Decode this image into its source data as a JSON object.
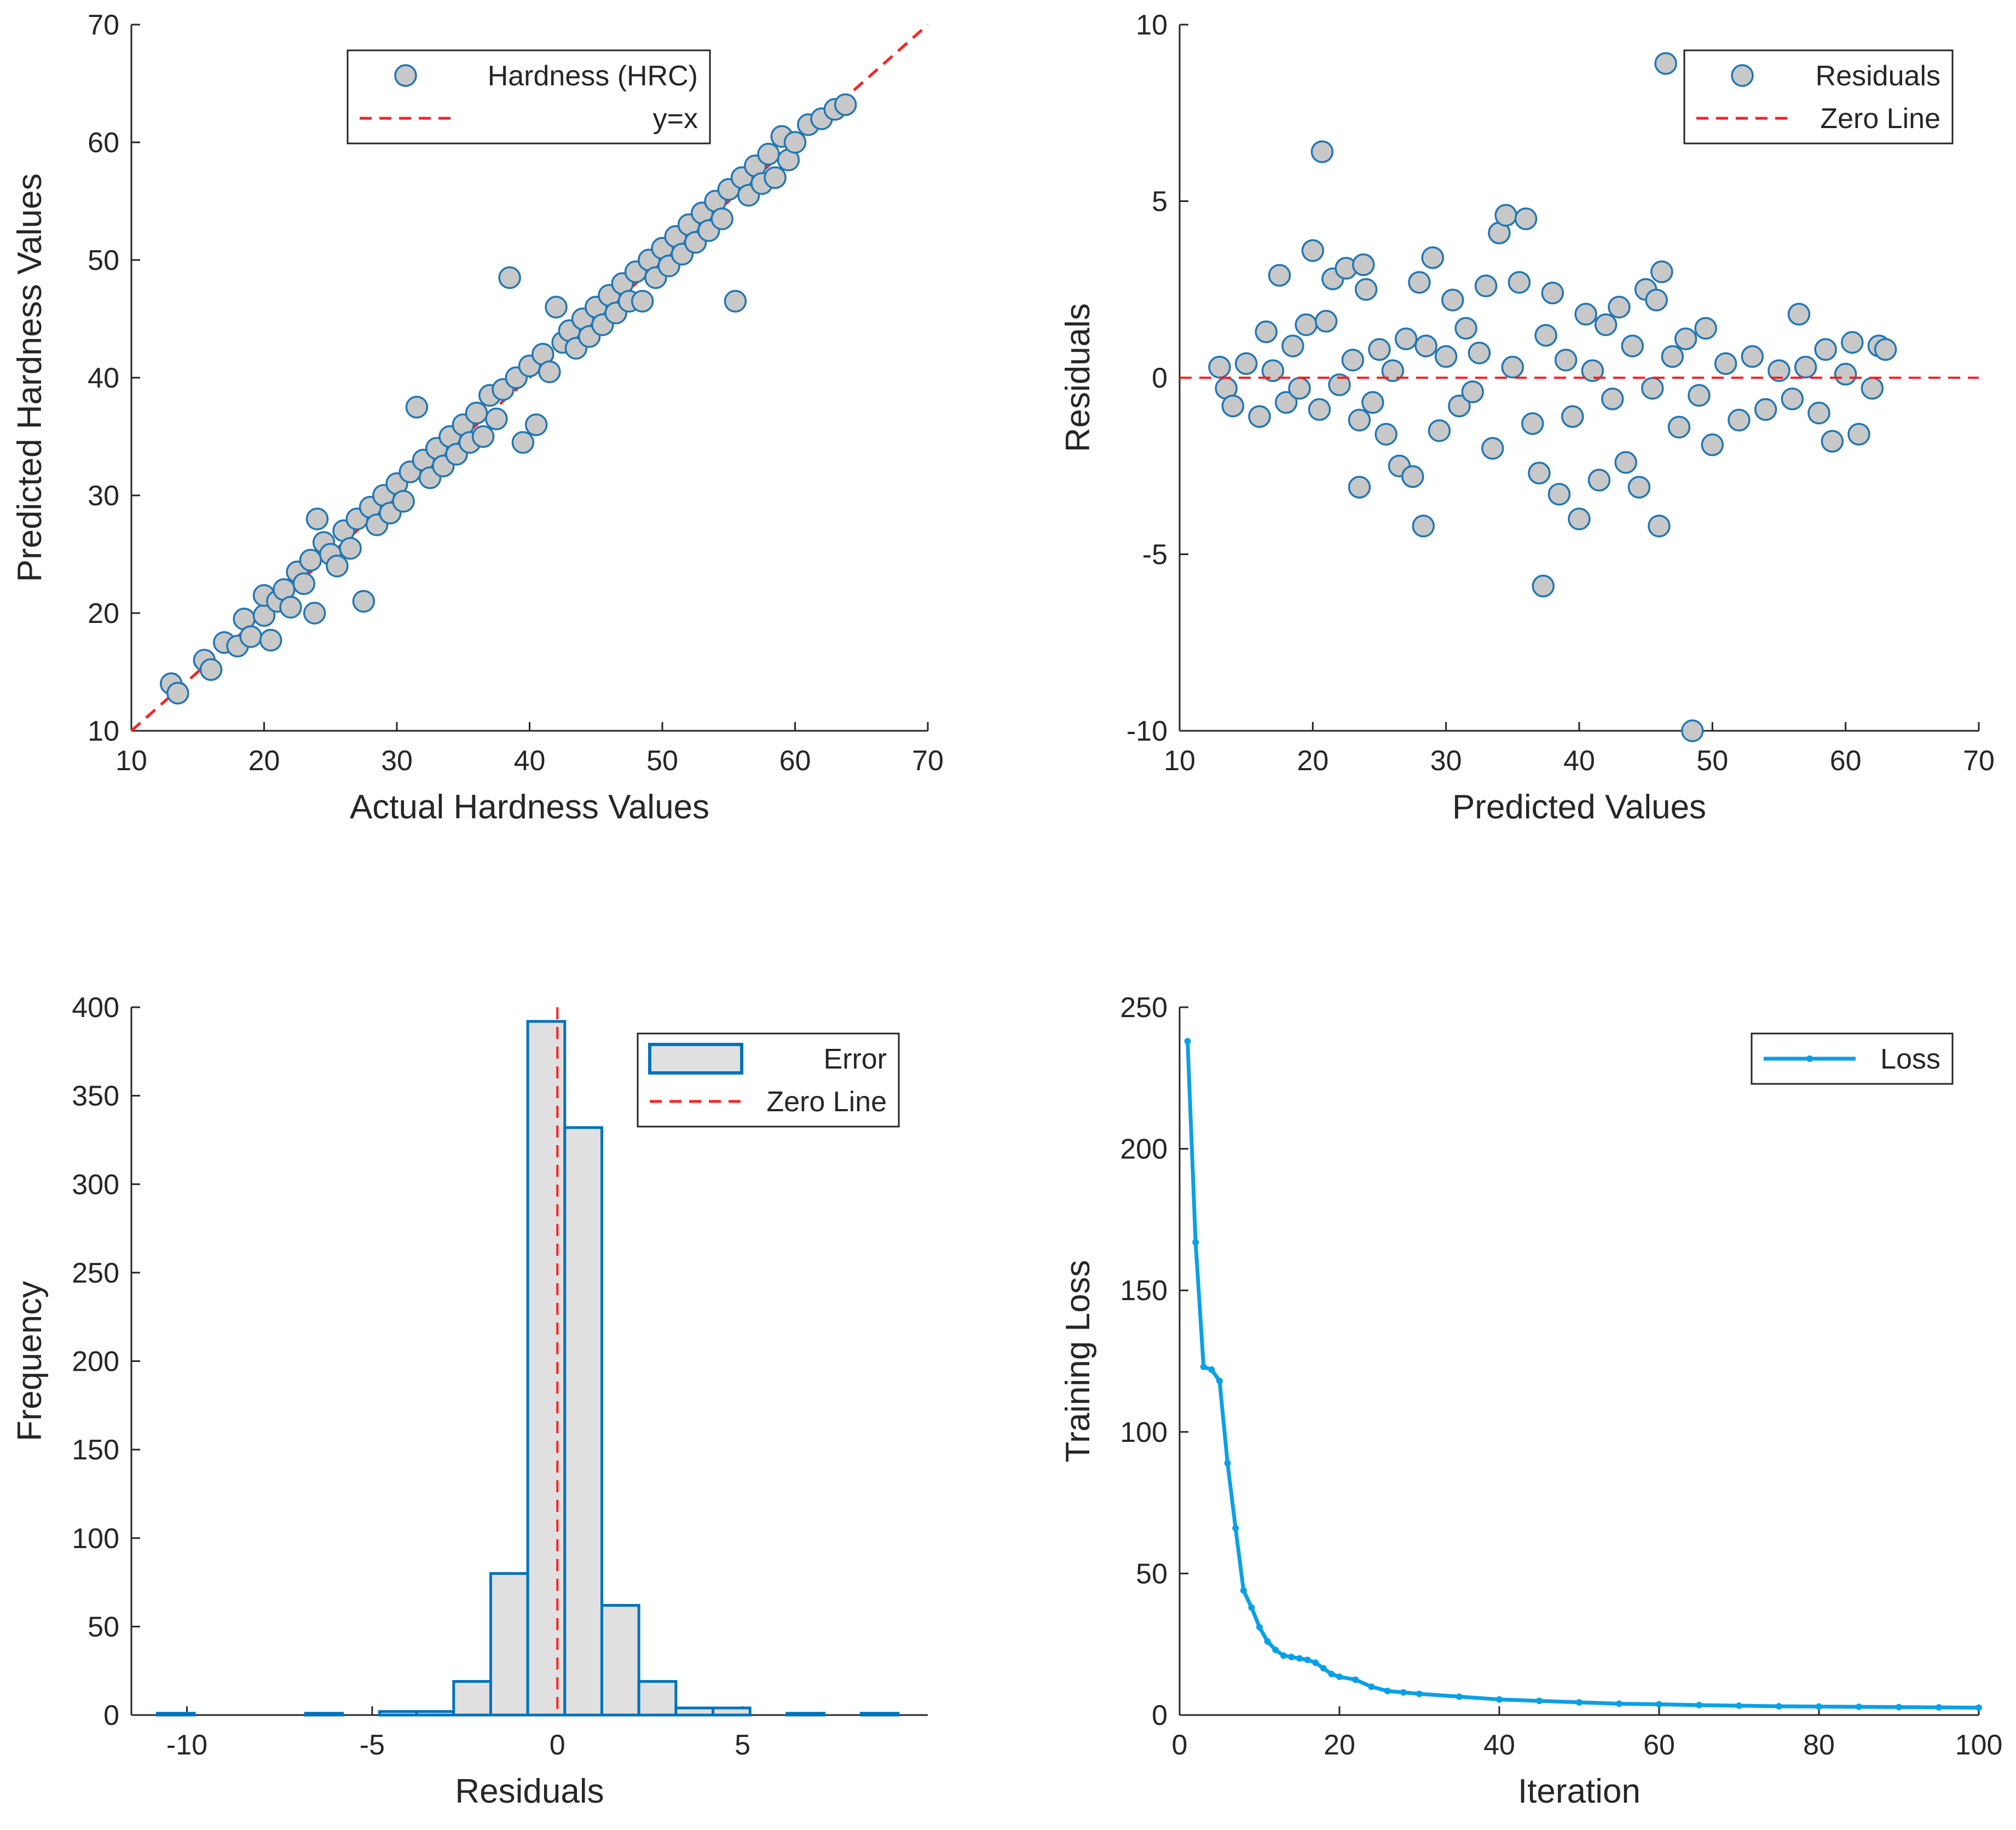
{
  "chart_data": [
    {
      "id": "scatter",
      "type": "scatter",
      "xlabel": "Actual Hardness Values",
      "ylabel": "Predicted Hardness Values",
      "xlim": [
        10,
        70
      ],
      "ylim": [
        10,
        70
      ],
      "xticks": [
        10,
        20,
        30,
        40,
        50,
        60,
        70
      ],
      "yticks": [
        10,
        20,
        30,
        40,
        50,
        60,
        70
      ],
      "legend": {
        "position": "top-center",
        "entries": [
          "Hardness (HRC)",
          "y=x"
        ]
      },
      "reference_line": {
        "name": "y=x",
        "from": [
          10,
          10
        ],
        "to": [
          70,
          70
        ],
        "style": "dashed",
        "color": "#ff2020"
      },
      "marker_fill": "#c8c8c8",
      "marker_edge": "#1f77b4",
      "series": [
        {
          "name": "Hardness (HRC)",
          "points": [
            [
              13,
              14
            ],
            [
              13.5,
              13.2
            ],
            [
              15.5,
              16
            ],
            [
              16,
              15.2
            ],
            [
              17,
              17.5
            ],
            [
              18,
              17.2
            ],
            [
              18.5,
              19.5
            ],
            [
              19,
              18
            ],
            [
              20,
              19.8
            ],
            [
              20,
              21.5
            ],
            [
              20.5,
              17.7
            ],
            [
              21,
              21
            ],
            [
              21.5,
              22
            ],
            [
              22,
              20.5
            ],
            [
              22.5,
              23.5
            ],
            [
              23,
              22.5
            ],
            [
              23.5,
              24.5
            ],
            [
              23.8,
              20
            ],
            [
              24,
              28
            ],
            [
              24.5,
              26
            ],
            [
              25,
              25
            ],
            [
              25.5,
              24
            ],
            [
              26,
              27
            ],
            [
              26.5,
              25.5
            ],
            [
              27,
              28
            ],
            [
              27.5,
              21
            ],
            [
              28,
              29
            ],
            [
              28.5,
              27.5
            ],
            [
              29,
              30
            ],
            [
              29.5,
              28.5
            ],
            [
              30,
              31
            ],
            [
              30.5,
              29.5
            ],
            [
              31,
              32
            ],
            [
              31.5,
              37.5
            ],
            [
              32,
              33
            ],
            [
              32.5,
              31.5
            ],
            [
              33,
              34
            ],
            [
              33.5,
              32.5
            ],
            [
              34,
              35
            ],
            [
              34.5,
              33.5
            ],
            [
              35,
              36
            ],
            [
              35.5,
              34.5
            ],
            [
              36,
              37
            ],
            [
              36.5,
              35
            ],
            [
              37,
              38.5
            ],
            [
              37.5,
              36.5
            ],
            [
              38,
              39
            ],
            [
              38.5,
              48.5
            ],
            [
              39,
              40
            ],
            [
              39.5,
              34.5
            ],
            [
              40,
              41
            ],
            [
              40.5,
              36
            ],
            [
              41,
              42
            ],
            [
              41.5,
              40.5
            ],
            [
              42,
              46
            ],
            [
              42.5,
              43
            ],
            [
              43,
              44
            ],
            [
              43.5,
              42.5
            ],
            [
              44,
              45
            ],
            [
              44.5,
              43.5
            ],
            [
              45,
              46
            ],
            [
              45.5,
              44.5
            ],
            [
              46,
              47
            ],
            [
              46.5,
              45.5
            ],
            [
              47,
              48
            ],
            [
              47.5,
              46.5
            ],
            [
              48,
              49
            ],
            [
              48.5,
              46.5
            ],
            [
              49,
              50
            ],
            [
              49.5,
              48.5
            ],
            [
              50,
              51
            ],
            [
              50.5,
              49.5
            ],
            [
              51,
              52
            ],
            [
              51.5,
              50.5
            ],
            [
              52,
              53
            ],
            [
              52.5,
              51.5
            ],
            [
              53,
              54
            ],
            [
              53.5,
              52.5
            ],
            [
              54,
              55
            ],
            [
              54.5,
              53.5
            ],
            [
              55,
              56
            ],
            [
              55.5,
              46.5
            ],
            [
              56,
              57
            ],
            [
              56.5,
              55.5
            ],
            [
              57,
              58
            ],
            [
              57.5,
              56.5
            ],
            [
              58,
              59
            ],
            [
              58.5,
              57
            ],
            [
              59,
              60.5
            ],
            [
              59.5,
              58.5
            ],
            [
              60,
              60
            ],
            [
              61,
              61.5
            ],
            [
              62,
              62
            ],
            [
              63,
              62.8
            ],
            [
              63.8,
              63.2
            ]
          ]
        }
      ]
    },
    {
      "id": "residuals",
      "type": "scatter",
      "xlabel": "Predicted Values",
      "ylabel": "Residuals",
      "xlim": [
        10,
        70
      ],
      "ylim": [
        -10,
        10
      ],
      "xticks": [
        10,
        20,
        30,
        40,
        50,
        60,
        70
      ],
      "yticks": [
        -10,
        -5,
        0,
        5,
        10
      ],
      "legend": {
        "position": "top-right",
        "entries": [
          "Residuals",
          "Zero Line"
        ]
      },
      "reference_line": {
        "name": "Zero Line",
        "y": 0,
        "style": "dashed",
        "color": "#ff2020"
      },
      "marker_fill": "#c8c8c8",
      "marker_edge": "#1f77b4",
      "series": [
        {
          "name": "Residuals",
          "points": [
            [
              13,
              0.3
            ],
            [
              13.5,
              -0.3
            ],
            [
              14,
              -0.8
            ],
            [
              15,
              0.4
            ],
            [
              16,
              -1.1
            ],
            [
              16.5,
              1.3
            ],
            [
              17,
              0.2
            ],
            [
              17.5,
              2.9
            ],
            [
              18,
              -0.7
            ],
            [
              18.5,
              0.9
            ],
            [
              19,
              -0.3
            ],
            [
              19.5,
              1.5
            ],
            [
              20,
              3.6
            ],
            [
              20.5,
              -0.9
            ],
            [
              20.7,
              6.4
            ],
            [
              21,
              1.6
            ],
            [
              21.5,
              2.8
            ],
            [
              22,
              -0.2
            ],
            [
              22.5,
              3.1
            ],
            [
              23,
              0.5
            ],
            [
              23.5,
              -1.2
            ],
            [
              23.5,
              -3.1
            ],
            [
              23.8,
              3.2
            ],
            [
              24,
              2.5
            ],
            [
              24.5,
              -0.7
            ],
            [
              25,
              0.8
            ],
            [
              25.5,
              -1.6
            ],
            [
              26,
              0.2
            ],
            [
              26.5,
              -2.5
            ],
            [
              27,
              1.1
            ],
            [
              27.5,
              -2.8
            ],
            [
              28,
              2.7
            ],
            [
              28.3,
              -4.2
            ],
            [
              28.5,
              0.9
            ],
            [
              29,
              3.4
            ],
            [
              29.5,
              -1.5
            ],
            [
              30,
              0.6
            ],
            [
              30.5,
              2.2
            ],
            [
              31,
              -0.8
            ],
            [
              31.5,
              1.4
            ],
            [
              32,
              -0.4
            ],
            [
              32.5,
              0.7
            ],
            [
              33,
              2.6
            ],
            [
              33.5,
              -2.0
            ],
            [
              34,
              4.1
            ],
            [
              34.5,
              4.6
            ],
            [
              35,
              0.3
            ],
            [
              35.5,
              2.7
            ],
            [
              36,
              4.5
            ],
            [
              36.5,
              -1.3
            ],
            [
              37,
              -2.7
            ],
            [
              37.5,
              1.2
            ],
            [
              37.3,
              -5.9
            ],
            [
              38,
              2.4
            ],
            [
              38.5,
              -3.3
            ],
            [
              39,
              0.5
            ],
            [
              39.5,
              -1.1
            ],
            [
              40,
              -4.0
            ],
            [
              40.5,
              1.8
            ],
            [
              41,
              0.2
            ],
            [
              41.5,
              -2.9
            ],
            [
              42,
              1.5
            ],
            [
              42.5,
              -0.6
            ],
            [
              43,
              2.0
            ],
            [
              43.5,
              -2.4
            ],
            [
              44,
              0.9
            ],
            [
              44.5,
              -3.1
            ],
            [
              45,
              2.5
            ],
            [
              45.5,
              -0.3
            ],
            [
              45.8,
              2.2
            ],
            [
              46,
              -4.2
            ],
            [
              46.2,
              3.0
            ],
            [
              46.5,
              8.9
            ],
            [
              47,
              0.6
            ],
            [
              47.5,
              -1.4
            ],
            [
              48,
              1.1
            ],
            [
              48.5,
              -10.0
            ],
            [
              49,
              -0.5
            ],
            [
              49.5,
              1.4
            ],
            [
              50,
              -1.9
            ],
            [
              51,
              0.4
            ],
            [
              52,
              -1.2
            ],
            [
              53,
              0.6
            ],
            [
              54,
              -0.9
            ],
            [
              55,
              0.2
            ],
            [
              56,
              -0.6
            ],
            [
              56.5,
              1.8
            ],
            [
              57,
              0.3
            ],
            [
              58,
              -1.0
            ],
            [
              58.5,
              0.8
            ],
            [
              59,
              -1.8
            ],
            [
              60,
              0.1
            ],
            [
              60.5,
              1.0
            ],
            [
              61,
              -1.6
            ],
            [
              62,
              -0.3
            ],
            [
              62.5,
              0.9
            ],
            [
              63,
              0.8
            ]
          ]
        }
      ]
    },
    {
      "id": "histogram",
      "type": "bar",
      "xlabel": "Residuals",
      "ylabel": "Frequency",
      "xlim": [
        -11.5,
        10
      ],
      "ylim": [
        0,
        400
      ],
      "xticks": [
        -10,
        -5,
        0,
        5
      ],
      "yticks": [
        0,
        50,
        100,
        150,
        200,
        250,
        300,
        350,
        400
      ],
      "legend": {
        "position": "top-right",
        "entries": [
          "Error",
          "Zero Line"
        ]
      },
      "reference_line": {
        "name": "Zero Line",
        "x": 0,
        "style": "dashed",
        "color": "#ff2020"
      },
      "bar_fill": "#e0e0e0",
      "bar_edge": "#0072bd",
      "bin_width": 1,
      "series": [
        {
          "name": "Error",
          "bins_left": [
            -10.8,
            -9.8,
            -8.8,
            -7.8,
            -6.8,
            -5.8,
            -4.8,
            -3.8,
            -2.8,
            -1.8,
            -0.8,
            0.2,
            1.2,
            2.2,
            3.2,
            4.2,
            5.2,
            6.2,
            7.2,
            8.2
          ],
          "values": [
            1,
            0,
            0,
            0,
            1,
            0,
            2,
            2,
            19,
            80,
            392,
            332,
            62,
            19,
            4,
            4,
            0,
            1,
            0,
            1
          ]
        }
      ]
    },
    {
      "id": "loss",
      "type": "line",
      "xlabel": "Iteration",
      "ylabel": "Training Loss",
      "xlim": [
        0,
        100
      ],
      "ylim": [
        0,
        250
      ],
      "xticks": [
        0,
        20,
        40,
        60,
        80,
        100
      ],
      "yticks": [
        0,
        50,
        100,
        150,
        200,
        250
      ],
      "legend": {
        "position": "top-right",
        "entries": [
          "Loss"
        ]
      },
      "line_color": "#0aa0e6",
      "series": [
        {
          "name": "Loss",
          "x": [
            1,
            2,
            3,
            4,
            5,
            6,
            7,
            8,
            9,
            10,
            11,
            12,
            13,
            14,
            15,
            16,
            17,
            18,
            19,
            20,
            22,
            24,
            26,
            28,
            30,
            35,
            40,
            45,
            50,
            55,
            60,
            65,
            70,
            75,
            80,
            85,
            90,
            95,
            100
          ],
          "values": [
            238,
            167,
            123,
            122,
            118,
            89,
            66,
            44,
            38,
            31,
            26,
            23,
            21,
            20.5,
            20,
            19.5,
            18.5,
            16.5,
            14.5,
            13.5,
            12.5,
            10,
            8.5,
            8,
            7.5,
            6.5,
            5.5,
            5,
            4.5,
            4,
            3.8,
            3.5,
            3.3,
            3.1,
            3,
            2.9,
            2.8,
            2.7,
            2.6
          ]
        }
      ]
    }
  ]
}
